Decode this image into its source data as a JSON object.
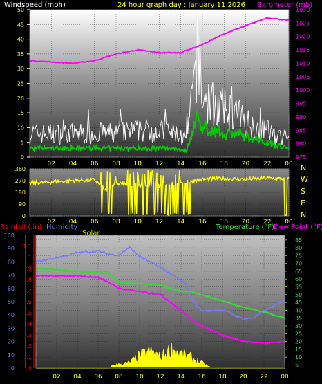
{
  "header": {
    "wind_title": "Windspeed (mph)",
    "graph_title": "24 hour graph day : January 11 2026",
    "baro_title": "Barometer (mb)"
  },
  "direction_labels": [
    "N",
    "W",
    "S",
    "E",
    "N"
  ],
  "bottom_header": {
    "rain": "Rainfall (.in)",
    "humidity": "Humidity",
    "solar": "Solar",
    "temperature": "Temperature (°F)",
    "dewpoint": "Dew Point (°F)"
  },
  "colors": {
    "wind_gust": "#ffffff",
    "wind_avg": "#00cc00",
    "barometer": "#ff00ff",
    "direction": "#ffff00",
    "temperature": "#33dd33",
    "dewpoint": "#ff00ff",
    "humidity": "#7777ff",
    "solar": "#ffff00",
    "rain": "#ff0000",
    "title": "#ffff00"
  },
  "chart_data": [
    {
      "type": "line",
      "title": "24 hour graph day : January 11 2026",
      "x_ticks": [
        "02",
        "04",
        "06",
        "08",
        "10",
        "12",
        "14",
        "16",
        "18",
        "20",
        "22",
        "00"
      ],
      "left_axis": {
        "label": "Windspeed (mph)",
        "ticks": [
          0,
          5,
          10,
          15,
          20,
          25,
          30,
          35,
          40,
          45,
          50
        ],
        "range": [
          0,
          50
        ]
      },
      "right_axis": {
        "label": "Barometer (mb)",
        "ticks": [
          975,
          980,
          985,
          990,
          995,
          1000,
          1005,
          1010,
          1015,
          1020,
          1025,
          1030
        ],
        "range": [
          975,
          1030
        ]
      },
      "series": [
        {
          "name": "Barometer (mb)",
          "axis": "right",
          "x": [
            0,
            2,
            4,
            6,
            8,
            10,
            12,
            14,
            15,
            16,
            18,
            20,
            22,
            24
          ],
          "values": [
            1011,
            1010.5,
            1010,
            1011,
            1013.5,
            1015,
            1014,
            1014,
            1015.5,
            1017,
            1021,
            1024,
            1027,
            1026
          ]
        },
        {
          "axis": "left",
          "x": [
            0,
            2,
            4,
            6,
            8,
            10,
            12,
            13.5,
            14.5,
            15,
            15.5,
            16,
            17,
            18,
            19,
            20,
            21,
            22,
            23,
            24
          ],
          "values": [
            8,
            8,
            8,
            8,
            8,
            9,
            9,
            8,
            6,
            18,
            34,
            20,
            18,
            16,
            15,
            12,
            10,
            9,
            7,
            6
          ]
        },
        {
          "axis": "left",
          "x": [
            0,
            2,
            4,
            6,
            8,
            10,
            12,
            13.5,
            14.5,
            15,
            15.5,
            16,
            17,
            18,
            19,
            20,
            21,
            22,
            23,
            24
          ],
          "values": [
            3,
            3,
            3,
            3,
            3,
            3,
            3,
            3,
            2,
            8,
            14,
            10,
            9,
            8,
            8,
            7,
            6,
            5,
            4,
            3
          ]
        }
      ]
    },
    {
      "type": "line",
      "x_ticks": [
        "02",
        "04",
        "06",
        "08",
        "10",
        "12",
        "14",
        "16",
        "18",
        "20",
        "22",
        "00"
      ],
      "left_axis": {
        "ticks": [
          0,
          90,
          180,
          270,
          360
        ],
        "range": [
          0,
          360
        ]
      },
      "series": [
        {
          "axis": "left",
          "x": [
            0,
            2,
            4,
            6,
            7,
            8,
            10,
            12,
            14,
            15,
            16,
            18,
            20,
            22,
            24
          ],
          "values": [
            250,
            260,
            270,
            275,
            200,
            250,
            240,
            230,
            250,
            270,
            280,
            285,
            280,
            290,
            280
          ]
        }
      ]
    },
    {
      "type": "line",
      "x_ticks": [
        "02",
        "04",
        "06",
        "08",
        "10",
        "12",
        "14",
        "16",
        "18",
        "20",
        "22",
        "00"
      ],
      "left_axis": {
        "label": "Rainfall (.in)",
        "ticks": [
          0,
          0.1,
          0.2,
          0.3,
          0.4,
          0.5,
          0.6,
          0.7,
          0.8,
          0.9,
          1,
          1.1
        ],
        "range": [
          0,
          1.2
        ]
      },
      "humidity_axis": {
        "label": "Humidity",
        "ticks": [
          0,
          10,
          20,
          30,
          40,
          50,
          60,
          70,
          80,
          90,
          100
        ],
        "range": [
          0,
          100
        ]
      },
      "right_axis": {
        "label": "Temperature (°F)",
        "ticks": [
          5,
          10,
          15,
          20,
          25,
          30,
          35,
          40,
          45,
          50,
          55,
          60,
          65,
          70,
          75,
          80,
          85
        ],
        "range": [
          3,
          88
        ]
      },
      "series": [
        {
          "name": "Temperature (°F)",
          "axis": "right",
          "x": [
            0,
            2,
            4,
            6,
            7,
            8,
            10,
            12,
            14,
            15,
            16,
            18,
            20,
            22,
            24
          ],
          "values": [
            67,
            66,
            65,
            64,
            64,
            58,
            57,
            56,
            52,
            52,
            50,
            46,
            42,
            39,
            35
          ]
        },
        {
          "name": "Dew Point (°F)",
          "axis": "right",
          "x": [
            0,
            2,
            4,
            6,
            7,
            8,
            10,
            12,
            14,
            15,
            16,
            18,
            20,
            22,
            24
          ],
          "values": [
            62,
            62,
            62,
            61,
            58,
            54,
            52,
            50,
            40,
            34,
            30,
            24,
            20,
            19,
            20
          ]
        },
        {
          "name": "Humidity",
          "axis": "humidity",
          "x": [
            0,
            2,
            4,
            6,
            7,
            8,
            9,
            10,
            12,
            14,
            14.5,
            15,
            16,
            18,
            20,
            21,
            22,
            24
          ],
          "values": [
            80,
            83,
            87,
            88,
            86,
            85,
            91,
            84,
            76,
            66,
            63,
            52,
            43,
            44,
            37,
            38,
            43,
            51
          ]
        },
        {
          "name": "Solar",
          "axis": "none",
          "x": [
            0,
            7,
            7.5,
            9,
            10,
            11,
            11.5,
            12,
            13,
            14,
            15,
            16,
            17,
            24
          ],
          "values": [
            0,
            0,
            0.03,
            0.05,
            0.12,
            0.16,
            0.14,
            0.1,
            0.18,
            0.14,
            0.1,
            0.05,
            0,
            0
          ]
        },
        {
          "name": "Rainfall (.in)",
          "axis": "left",
          "x": [
            0,
            24
          ],
          "values": [
            0,
            0
          ]
        }
      ]
    }
  ]
}
